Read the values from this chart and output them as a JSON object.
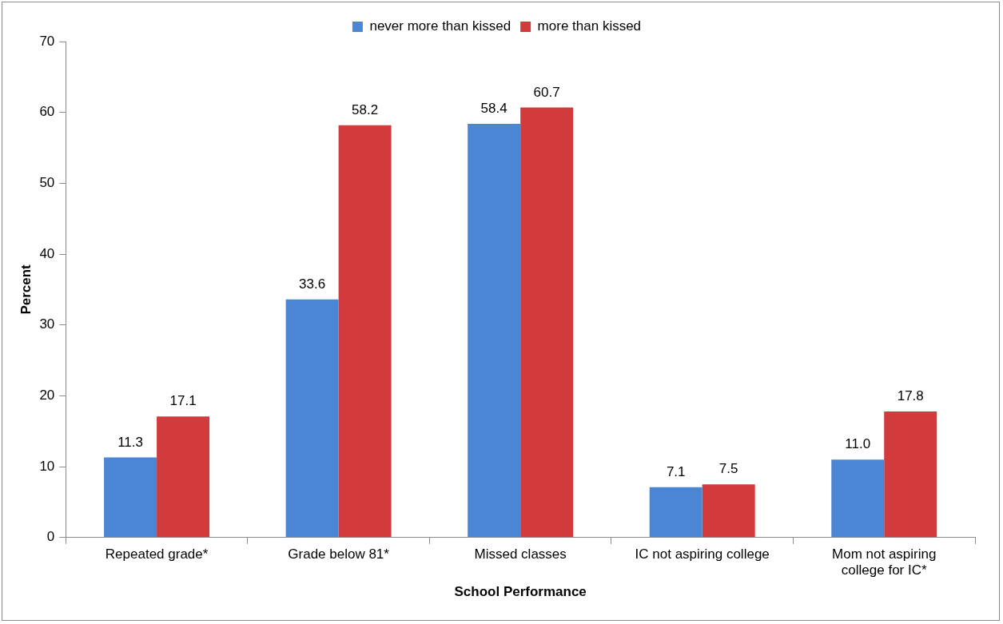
{
  "chart_data": {
    "type": "bar",
    "xlabel": "School Performance",
    "ylabel": "Percent",
    "categories": [
      "Repeated grade*",
      "Grade below 81*",
      "Missed classes",
      "IC not aspiring college",
      "Mom not aspiring college for IC*"
    ],
    "series": [
      {
        "name": "never more than kissed",
        "color": "#4a86d4",
        "values": [
          11.3,
          33.6,
          58.4,
          7.1,
          11.0
        ],
        "value_labels": [
          "11.3",
          "33.6",
          "58.4",
          "7.1",
          "11.0"
        ]
      },
      {
        "name": "more than kissed",
        "color": "#d13b3b",
        "values": [
          17.1,
          58.2,
          60.7,
          7.5,
          17.8
        ],
        "value_labels": [
          "17.1",
          "58.2",
          "60.7",
          "7.5",
          "17.8"
        ]
      }
    ],
    "ylim": [
      0,
      70
    ],
    "yticks": [
      0,
      10,
      20,
      30,
      40,
      50,
      60,
      70
    ],
    "grid": false,
    "legend": "top"
  }
}
